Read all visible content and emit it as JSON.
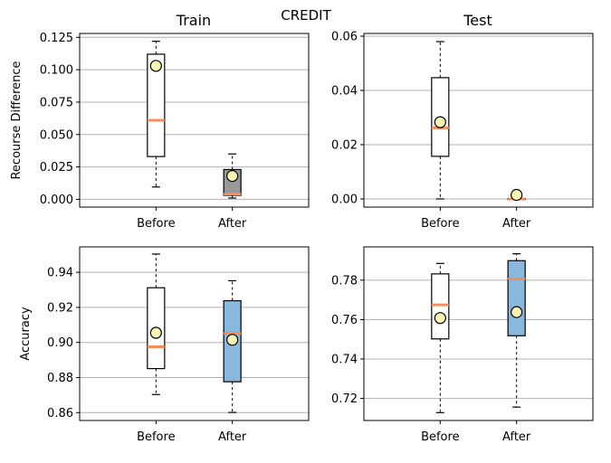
{
  "figure": {
    "title": "CREDIT",
    "columns": [
      "Train",
      "Test"
    ]
  },
  "colors": {
    "box_before": "#ffffff",
    "box_after_recourse": "#999999",
    "box_after_accuracy": "#89b8dc",
    "median": "#f28e5b",
    "mean_marker": "#fbf5b3",
    "grid": "#b0b0b0"
  },
  "chart_data": [
    {
      "type": "box",
      "panel": "train-recourse",
      "ylabel": "Recourse Difference",
      "categories": [
        "Before",
        "After"
      ],
      "ylim": [
        -0.006,
        0.128
      ],
      "yticks": [
        0.0,
        0.025,
        0.05,
        0.075,
        0.1,
        0.125
      ],
      "ytick_labels": [
        "0.000",
        "0.025",
        "0.050",
        "0.075",
        "0.100",
        "0.125"
      ],
      "grid": true,
      "boxes": [
        {
          "label": "Before",
          "whislo": 0.0095,
          "q1": 0.033,
          "med": 0.061,
          "q3": 0.112,
          "whishi": 0.122,
          "mean": 0.103,
          "fill": "box_before"
        },
        {
          "label": "After",
          "whislo": 0.001,
          "q1": 0.003,
          "med": 0.004,
          "q3": 0.023,
          "whishi": 0.035,
          "mean": 0.018,
          "fill": "box_after_recourse"
        }
      ]
    },
    {
      "type": "box",
      "panel": "test-recourse",
      "ylabel": "",
      "categories": [
        "Before",
        "After"
      ],
      "ylim": [
        -0.003,
        0.061
      ],
      "yticks": [
        0.0,
        0.02,
        0.04,
        0.06
      ],
      "ytick_labels": [
        "0.00",
        "0.02",
        "0.04",
        "0.06"
      ],
      "grid": true,
      "boxes": [
        {
          "label": "Before",
          "whislo": 0.0,
          "q1": 0.0157,
          "med": 0.0262,
          "q3": 0.0447,
          "whishi": 0.058,
          "mean": 0.0283,
          "fill": "box_before"
        },
        {
          "label": "After",
          "whislo": 0.0,
          "q1": 0.0,
          "med": 0.0,
          "q3": 0.0,
          "whishi": 0.0,
          "mean": 0.0015,
          "fill": "box_after_recourse"
        }
      ]
    },
    {
      "type": "box",
      "panel": "train-accuracy",
      "ylabel": "Accuracy",
      "categories": [
        "Before",
        "After"
      ],
      "ylim": [
        0.8555,
        0.9545
      ],
      "yticks": [
        0.86,
        0.88,
        0.9,
        0.92,
        0.94
      ],
      "ytick_labels": [
        "0.86",
        "0.88",
        "0.90",
        "0.92",
        "0.94"
      ],
      "grid": true,
      "boxes": [
        {
          "label": "Before",
          "whislo": 0.8703,
          "q1": 0.8851,
          "med": 0.8975,
          "q3": 0.9312,
          "whishi": 0.9504,
          "mean": 0.9055,
          "fill": "box_before"
        },
        {
          "label": "After",
          "whislo": 0.8601,
          "q1": 0.8776,
          "med": 0.9051,
          "q3": 0.9238,
          "whishi": 0.9352,
          "mean": 0.9015,
          "fill": "box_after_accuracy"
        }
      ]
    },
    {
      "type": "box",
      "panel": "test-accuracy",
      "ylabel": "",
      "categories": [
        "Before",
        "After"
      ],
      "ylim": [
        0.7088,
        0.7969
      ],
      "yticks": [
        0.72,
        0.74,
        0.76,
        0.78
      ],
      "ytick_labels": [
        "0.72",
        "0.74",
        "0.76",
        "0.78"
      ],
      "grid": true,
      "boxes": [
        {
          "label": "Before",
          "whislo": 0.7128,
          "q1": 0.7502,
          "med": 0.7675,
          "q3": 0.7832,
          "whishi": 0.7885,
          "mean": 0.7608,
          "fill": "box_before"
        },
        {
          "label": "After",
          "whislo": 0.7156,
          "q1": 0.7518,
          "med": 0.7806,
          "q3": 0.7899,
          "whishi": 0.7934,
          "mean": 0.7638,
          "fill": "box_after_accuracy"
        }
      ]
    }
  ]
}
